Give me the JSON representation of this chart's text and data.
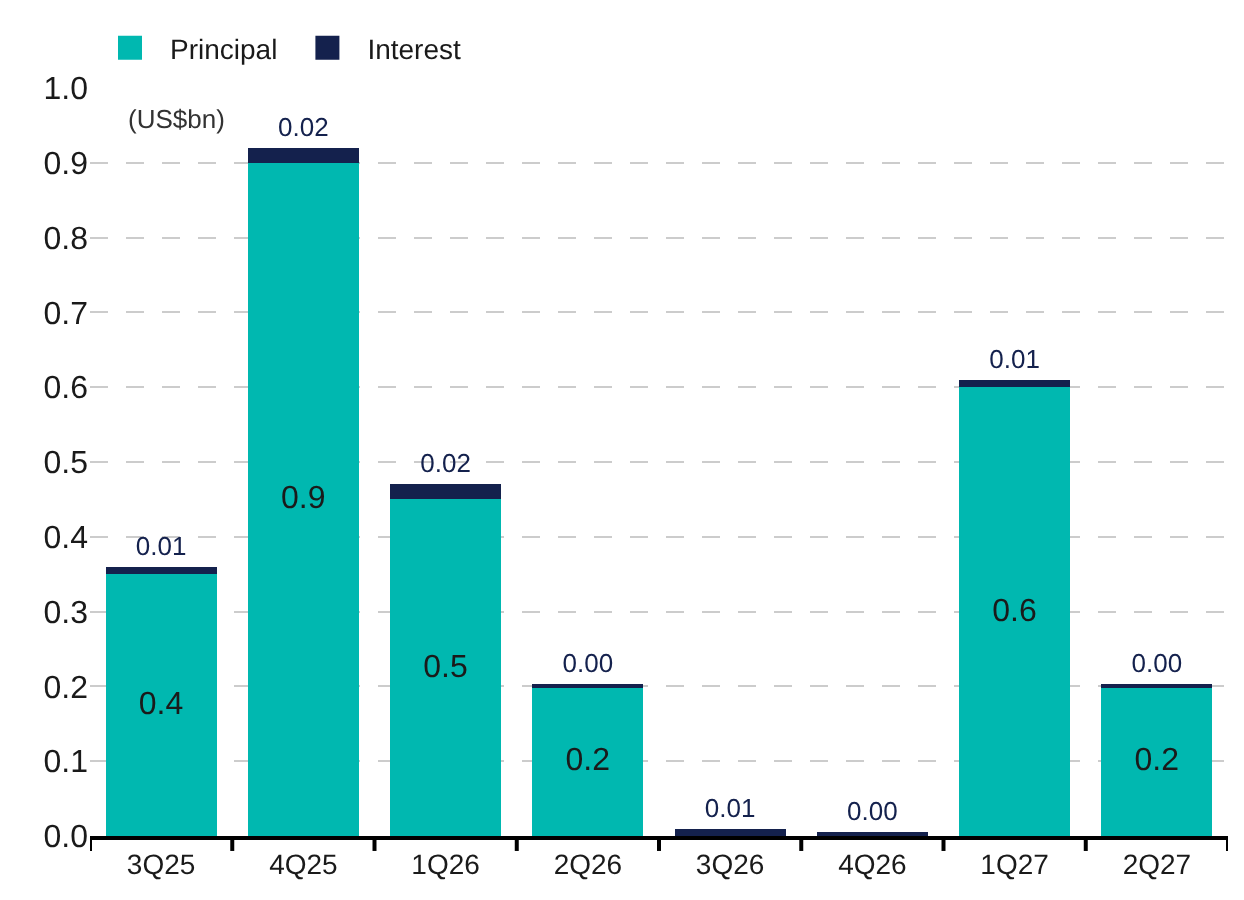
{
  "chart_data": {
    "type": "bar",
    "stacked": true,
    "categories": [
      "3Q25",
      "4Q25",
      "1Q26",
      "2Q26",
      "3Q26",
      "4Q26",
      "1Q27",
      "2Q27"
    ],
    "series": [
      {
        "name": "Principal",
        "color": "#00b8b0",
        "values": [
          0.35,
          0.9,
          0.45,
          0.2,
          0,
          0,
          0.6,
          0.2
        ],
        "value_labels": [
          "0.4",
          "0.9",
          "0.5",
          "0.2",
          null,
          null,
          "0.6",
          "0.2"
        ]
      },
      {
        "name": "Interest",
        "color": "#14214d",
        "values": [
          0.01,
          0.02,
          0.02,
          0.003,
          0.01,
          0.003,
          0.01,
          0.003
        ],
        "value_labels": [
          "0.01",
          "0.02",
          "0.02",
          "0.00",
          "0.01",
          "0.00",
          "0.01",
          "0.00"
        ]
      }
    ],
    "ylim": [
      0,
      1
    ],
    "yticks": [
      {
        "value": 0,
        "label": "0.0"
      },
      0.1,
      0.2,
      0.3,
      0.4,
      0.5,
      0.6,
      0.7,
      0.8,
      0.9,
      {
        "value": 1,
        "label": "1.0"
      }
    ],
    "grid": "y",
    "legend": "top left",
    "annotations": [
      "(US$bn)"
    ]
  }
}
